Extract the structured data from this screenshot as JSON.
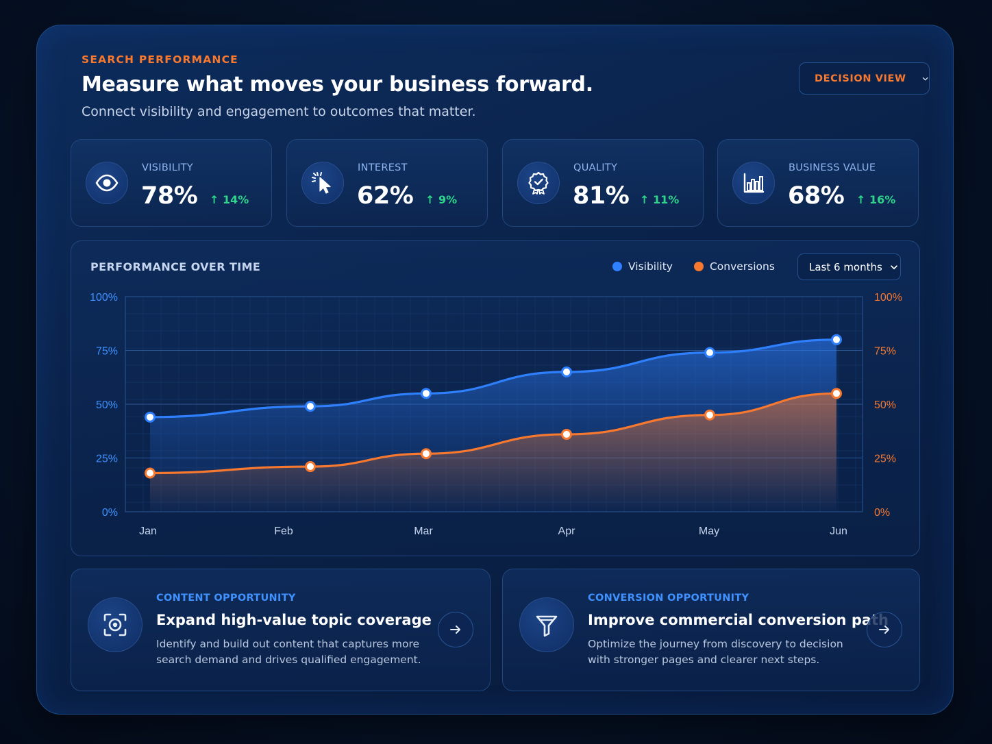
{
  "header": {
    "eyebrow": "SEARCH PERFORMANCE",
    "title": "Measure what moves your business forward.",
    "subtitle": "Connect visibility and engagement to outcomes that matter.",
    "view_button": "DECISION VIEW"
  },
  "kpis": [
    {
      "label": "VISIBILITY",
      "value": "78%",
      "delta": "14%",
      "icon": "eye-icon"
    },
    {
      "label": "INTEREST",
      "value": "62%",
      "delta": "9%",
      "icon": "cursor-click-icon"
    },
    {
      "label": "QUALITY",
      "value": "81%",
      "delta": "11%",
      "icon": "award-badge-icon"
    },
    {
      "label": "BUSINESS VALUE",
      "value": "68%",
      "delta": "16%",
      "icon": "bar-chart-icon"
    }
  ],
  "chart": {
    "title": "PERFORMANCE OVER TIME",
    "range": "Last 6 months"
  },
  "chart_data": {
    "type": "area",
    "categories": [
      "Jan",
      "Feb",
      "Mar",
      "Apr",
      "May",
      "Jun"
    ],
    "series": [
      {
        "name": "Visibility",
        "color": "#2f80ff",
        "values": [
          44,
          49,
          55,
          65,
          74,
          80
        ]
      },
      {
        "name": "Conversions",
        "color": "#f7782f",
        "values": [
          18,
          21,
          27,
          36,
          45,
          55
        ]
      }
    ],
    "ylim": [
      0,
      100
    ],
    "y_ticks": [
      "0%",
      "25%",
      "50%",
      "75%",
      "100%"
    ],
    "y2_ticks": [
      "0%",
      "25%",
      "50%",
      "75%",
      "100%"
    ],
    "grid": true,
    "legend": "top-right"
  },
  "opportunities": [
    {
      "eyebrow": "CONTENT OPPORTUNITY",
      "title": "Expand high-value topic coverage",
      "desc_line1": "Identify and build out content that captures more",
      "desc_line2": "search demand and drives qualified engagement.",
      "icon": "focus-target-icon"
    },
    {
      "eyebrow": "CONVERSION OPPORTUNITY",
      "title": "Improve commercial conversion path",
      "desc_line1": "Optimize the journey from discovery to decision",
      "desc_line2": "with stronger pages and clearer next steps.",
      "icon": "funnel-icon"
    }
  ],
  "colors": {
    "accent_orange": "#f7782f",
    "accent_blue": "#2f80ff",
    "positive_green": "#2fd58b"
  }
}
